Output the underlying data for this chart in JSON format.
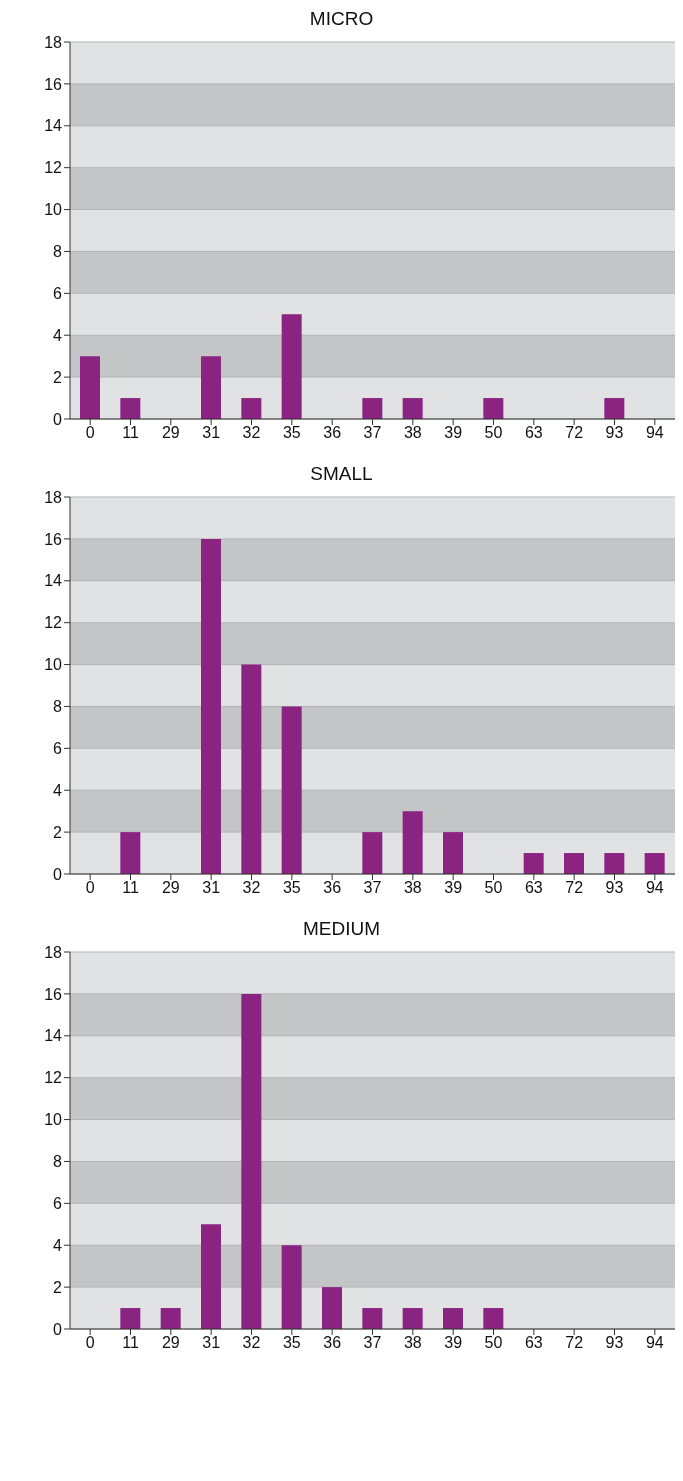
{
  "chart_data": [
    {
      "type": "bar",
      "title": "MICRO",
      "categories": [
        "0",
        "11",
        "29",
        "31",
        "32",
        "35",
        "36",
        "37",
        "38",
        "39",
        "50",
        "63",
        "72",
        "93",
        "94"
      ],
      "values": [
        3,
        1,
        0,
        3,
        1,
        5,
        0,
        1,
        1,
        0,
        1,
        0,
        0,
        1,
        0
      ],
      "color": "#8b2381",
      "ylim": [
        0,
        18
      ],
      "yticks": [
        0,
        2,
        4,
        6,
        8,
        10,
        12,
        14,
        16,
        18
      ],
      "grid": "y"
    },
    {
      "type": "bar",
      "title": "SMALL",
      "categories": [
        "0",
        "11",
        "29",
        "31",
        "32",
        "35",
        "36",
        "37",
        "38",
        "39",
        "50",
        "63",
        "72",
        "93",
        "94"
      ],
      "values": [
        0,
        2,
        0,
        16,
        10,
        8,
        0,
        2,
        3,
        2,
        0,
        1,
        1,
        1,
        1
      ],
      "color": "#8b2381",
      "ylim": [
        0,
        18
      ],
      "yticks": [
        0,
        2,
        4,
        6,
        8,
        10,
        12,
        14,
        16,
        18
      ],
      "grid": "y"
    },
    {
      "type": "bar",
      "title": "MEDIUM",
      "categories": [
        "0",
        "11",
        "29",
        "31",
        "32",
        "35",
        "36",
        "37",
        "38",
        "39",
        "50",
        "63",
        "72",
        "93",
        "94"
      ],
      "values": [
        0,
        1,
        1,
        5,
        16,
        4,
        2,
        1,
        1,
        1,
        1,
        0,
        0,
        0,
        0
      ],
      "color": "#8b2381",
      "ylim": [
        0,
        18
      ],
      "yticks": [
        0,
        2,
        4,
        6,
        8,
        10,
        12,
        14,
        16,
        18
      ],
      "grid": "y"
    }
  ]
}
